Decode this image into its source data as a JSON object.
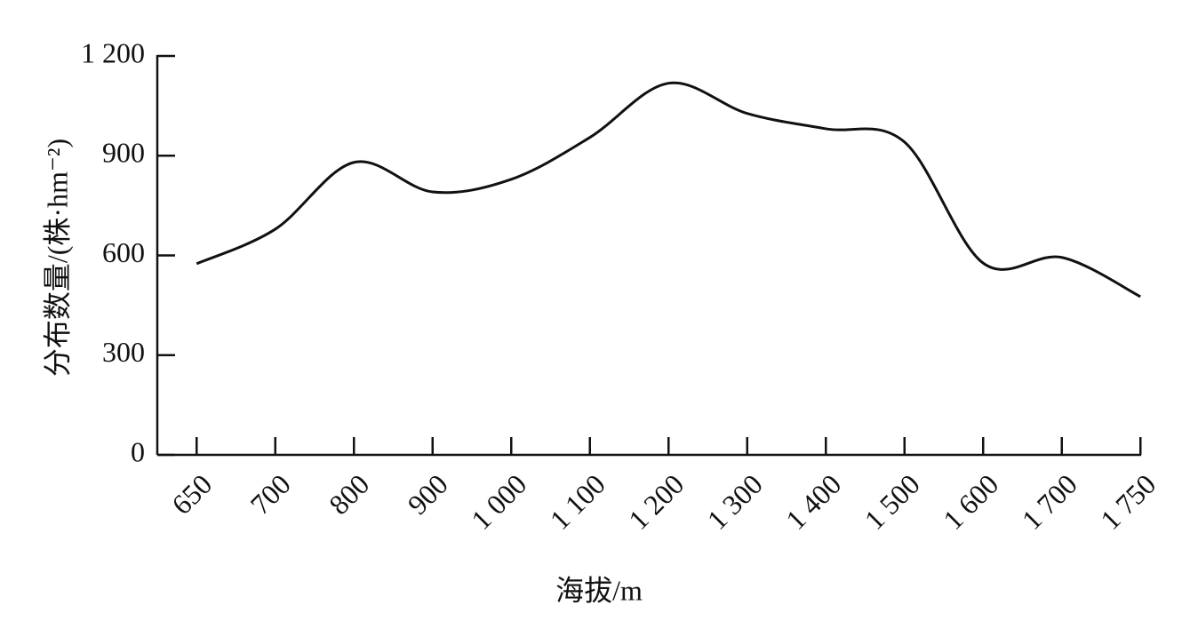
{
  "chart_data": {
    "type": "line",
    "x_label": "海拔/m",
    "y_label": "分布数量/(株·hm⁻²)",
    "categories": [
      "650",
      "700",
      "800",
      "900",
      "1 000",
      "1 100",
      "1 200",
      "1 300",
      "1 400",
      "1 500",
      "1 600",
      "1 700",
      "1 750"
    ],
    "values": [
      575,
      679,
      880,
      791,
      829,
      955,
      1118,
      1027,
      981,
      941,
      577,
      594,
      476
    ],
    "color": "#111111",
    "ylim": [
      0,
      1200
    ],
    "yticks": [
      0,
      300,
      600,
      900,
      {
        "value": 1200,
        "label": "1 200"
      }
    ],
    "grid": false
  }
}
